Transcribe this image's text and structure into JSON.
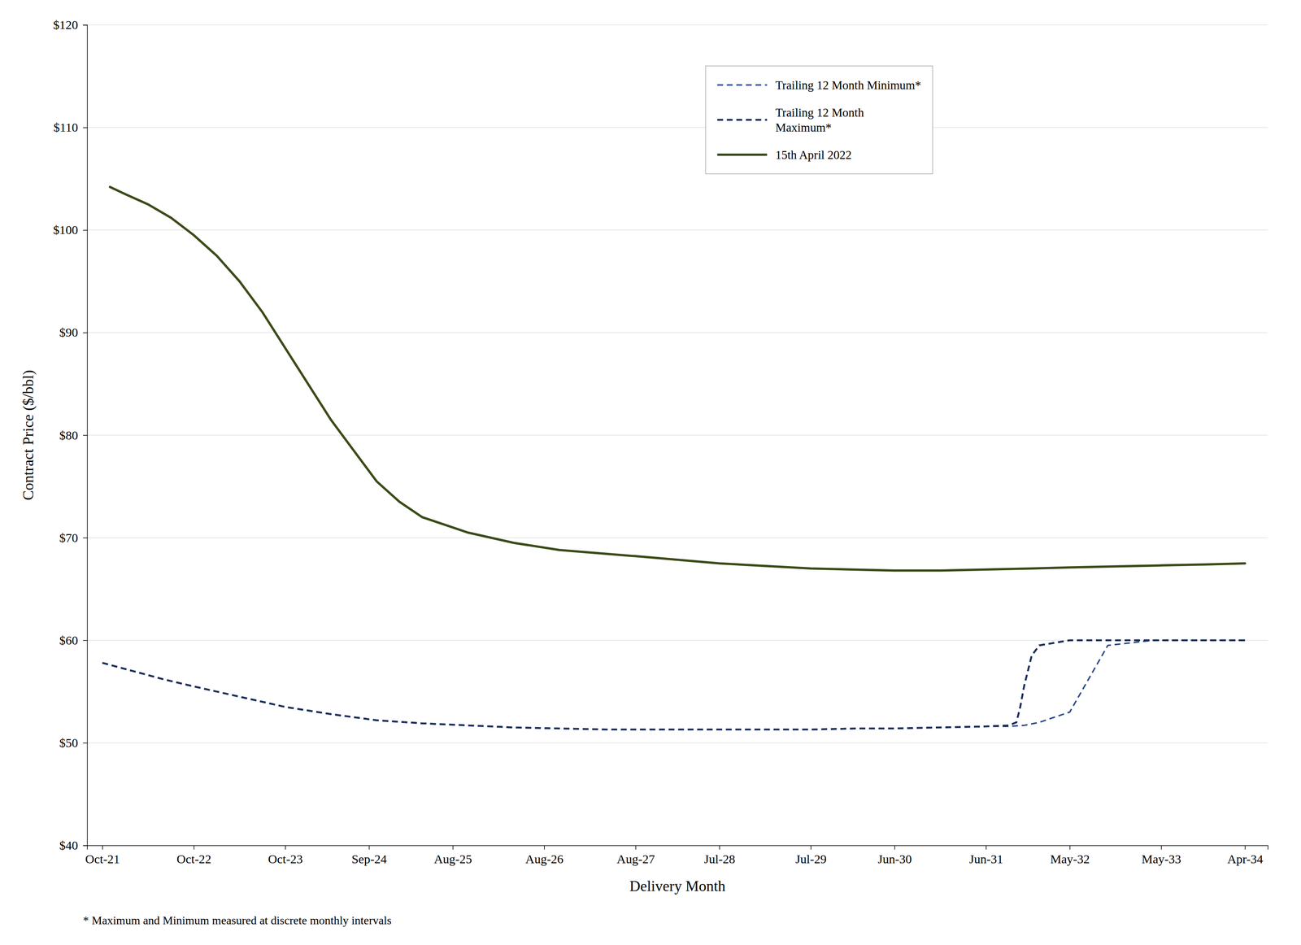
{
  "chart_data": {
    "type": "line",
    "xlabel": "Delivery Month",
    "ylabel": "Contract Price ($/bbl)",
    "footnote": "* Maximum and Minimum measured at discrete monthly intervals",
    "xlim": [
      -2,
      153
    ],
    "xticks": [
      {
        "value": 0,
        "label": "Oct-21"
      },
      {
        "value": 12,
        "label": "Oct-22"
      },
      {
        "value": 24,
        "label": "Oct-23"
      },
      {
        "value": 35,
        "label": "Sep-24"
      },
      {
        "value": 46,
        "label": "Aug-25"
      },
      {
        "value": 58,
        "label": "Aug-26"
      },
      {
        "value": 70,
        "label": "Aug-27"
      },
      {
        "value": 81,
        "label": "Jul-28"
      },
      {
        "value": 93,
        "label": "Jul-29"
      },
      {
        "value": 104,
        "label": "Jun-30"
      },
      {
        "value": 116,
        "label": "Jun-31"
      },
      {
        "value": 127,
        "label": "May-32"
      },
      {
        "value": 139,
        "label": "May-33"
      },
      {
        "value": 150,
        "label": "Apr-34"
      }
    ],
    "ylim": [
      40,
      120
    ],
    "yticks": [
      {
        "value": 40,
        "label": "$40"
      },
      {
        "value": 50,
        "label": "$50"
      },
      {
        "value": 60,
        "label": "$60"
      },
      {
        "value": 70,
        "label": "$70"
      },
      {
        "value": 80,
        "label": "$80"
      },
      {
        "value": 90,
        "label": "$90"
      },
      {
        "value": 100,
        "label": "$100"
      },
      {
        "value": 110,
        "label": "$110"
      },
      {
        "value": 120,
        "label": "$120"
      }
    ],
    "grid": true,
    "legend": "top",
    "series": [
      {
        "name": "Trailing 12 Month Minimum*",
        "color": "#2e4a8a",
        "line_style": "dashed",
        "x": [
          0,
          4,
          8,
          12,
          18,
          24,
          30,
          36,
          42,
          48,
          54,
          60,
          66,
          70,
          75,
          81,
          87,
          93,
          99,
          104,
          110,
          116,
          119,
          121,
          123,
          127,
          132,
          138,
          144,
          150
        ],
        "values": [
          57.8,
          57.0,
          56.2,
          55.5,
          54.5,
          53.5,
          52.8,
          52.2,
          51.9,
          51.7,
          51.5,
          51.4,
          51.3,
          51.3,
          51.3,
          51.3,
          51.3,
          51.3,
          51.4,
          51.4,
          51.5,
          51.6,
          51.6,
          51.7,
          52.0,
          53.0,
          59.5,
          60.0,
          60.0,
          60.0
        ]
      },
      {
        "name": "Trailing 12 Month\nMaximum*",
        "color": "#1a2e5a",
        "line_style": "dashed",
        "x": [
          0,
          4,
          8,
          12,
          18,
          24,
          30,
          36,
          42,
          48,
          54,
          60,
          66,
          70,
          75,
          81,
          87,
          93,
          99,
          104,
          110,
          116,
          119,
          120,
          120.5,
          121,
          122,
          123,
          127,
          132,
          138,
          144,
          150
        ],
        "values": [
          57.8,
          57.0,
          56.2,
          55.5,
          54.5,
          53.5,
          52.8,
          52.2,
          51.9,
          51.7,
          51.5,
          51.4,
          51.3,
          51.3,
          51.3,
          51.3,
          51.3,
          51.3,
          51.4,
          51.4,
          51.5,
          51.6,
          51.7,
          52.0,
          53.5,
          55.5,
          58.5,
          59.5,
          60.0,
          60.0,
          60.0,
          60.0,
          60.0
        ]
      },
      {
        "name": "15th April 2022",
        "color": "#3a4a18",
        "line_style": "solid",
        "x": [
          1,
          3,
          6,
          9,
          12,
          15,
          18,
          21,
          24,
          27,
          30,
          33,
          36,
          39,
          42,
          48,
          54,
          60,
          70,
          81,
          93,
          104,
          110,
          116,
          122,
          127,
          133,
          139,
          145,
          150
        ],
        "values": [
          104.2,
          103.5,
          102.5,
          101.2,
          99.5,
          97.5,
          95.0,
          92.0,
          88.5,
          85.0,
          81.5,
          78.5,
          75.5,
          73.5,
          72.0,
          70.5,
          69.5,
          68.8,
          68.2,
          67.5,
          67.0,
          66.8,
          66.8,
          66.9,
          67.0,
          67.1,
          67.2,
          67.3,
          67.4,
          67.5
        ]
      }
    ]
  }
}
